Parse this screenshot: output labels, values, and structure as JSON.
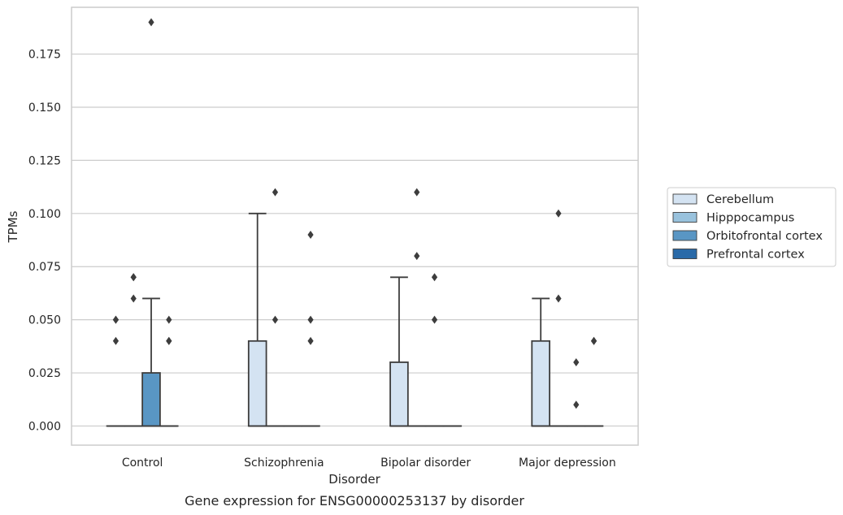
{
  "caption": "Gene expression for ENSG00000253137 by disorder",
  "chart_data": {
    "type": "box",
    "title": "",
    "xlabel": "Disorder",
    "ylabel": "TPMs",
    "categories": [
      "Control",
      "Schizophrenia",
      "Bipolar disorder",
      "Major depression"
    ],
    "ylim": [
      -0.009,
      0.197
    ],
    "yticks": [
      0.0,
      0.025,
      0.05,
      0.075,
      0.1,
      0.125,
      0.15,
      0.175
    ],
    "ytick_labels": [
      "0.000",
      "0.025",
      "0.050",
      "0.075",
      "0.100",
      "0.125",
      "0.150",
      "0.175"
    ],
    "grid": true,
    "legend_position": "right",
    "series": [
      {
        "name": "Cerebellum",
        "color": "#d4e3f2",
        "boxes": [
          {
            "category": "Control",
            "q1": 0,
            "median": 0,
            "q3": 0,
            "whisker_low": 0,
            "whisker_high": 0,
            "outliers": [
              0.04,
              0.05,
              0.05
            ]
          },
          {
            "category": "Schizophrenia",
            "q1": 0,
            "median": 0,
            "q3": 0.04,
            "whisker_low": 0,
            "whisker_high": 0.1,
            "outliers": []
          },
          {
            "category": "Bipolar disorder",
            "q1": 0,
            "median": 0,
            "q3": 0.03,
            "whisker_low": 0,
            "whisker_high": 0.07,
            "outliers": []
          },
          {
            "category": "Major depression",
            "q1": 0,
            "median": 0,
            "q3": 0.04,
            "whisker_low": 0,
            "whisker_high": 0.06,
            "outliers": []
          }
        ]
      },
      {
        "name": "Hipppocampus",
        "color": "#99c2dd",
        "boxes": [
          {
            "category": "Control",
            "q1": 0,
            "median": 0,
            "q3": 0,
            "whisker_low": 0,
            "whisker_high": 0,
            "outliers": [
              0.06,
              0.07,
              0.07
            ]
          },
          {
            "category": "Schizophrenia",
            "q1": 0,
            "median": 0,
            "q3": 0,
            "whisker_low": 0,
            "whisker_high": 0,
            "outliers": [
              0.05,
              0.11
            ]
          },
          {
            "category": "Bipolar disorder",
            "q1": 0,
            "median": 0,
            "q3": 0,
            "whisker_low": 0,
            "whisker_high": 0,
            "outliers": [
              0.08,
              0.11
            ]
          },
          {
            "category": "Major depression",
            "q1": 0,
            "median": 0,
            "q3": 0,
            "whisker_low": 0,
            "whisker_high": 0,
            "outliers": [
              0.06,
              0.1
            ]
          }
        ]
      },
      {
        "name": "Orbitofrontal cortex",
        "color": "#5996c4",
        "boxes": [
          {
            "category": "Control",
            "q1": 0,
            "median": 0,
            "q3": 0.025,
            "whisker_low": 0,
            "whisker_high": 0.06,
            "outliers": [
              0.19
            ]
          },
          {
            "category": "Schizophrenia",
            "q1": 0,
            "median": 0,
            "q3": 0,
            "whisker_low": 0,
            "whisker_high": 0,
            "outliers": []
          },
          {
            "category": "Bipolar disorder",
            "q1": 0,
            "median": 0,
            "q3": 0,
            "whisker_low": 0,
            "whisker_high": 0,
            "outliers": [
              0.05,
              0.07
            ]
          },
          {
            "category": "Major depression",
            "q1": 0,
            "median": 0,
            "q3": 0,
            "whisker_low": 0,
            "whisker_high": 0,
            "outliers": [
              0.01,
              0.03
            ]
          }
        ]
      },
      {
        "name": "Prefrontal cortex",
        "color": "#2a6aa8",
        "boxes": [
          {
            "category": "Control",
            "q1": 0,
            "median": 0,
            "q3": 0,
            "whisker_low": 0,
            "whisker_high": 0,
            "outliers": [
              0.04,
              0.04,
              0.05
            ]
          },
          {
            "category": "Schizophrenia",
            "q1": 0,
            "median": 0,
            "q3": 0,
            "whisker_low": 0,
            "whisker_high": 0,
            "outliers": [
              0.04,
              0.05,
              0.09
            ]
          },
          {
            "category": "Bipolar disorder",
            "q1": 0,
            "median": 0,
            "q3": 0,
            "whisker_low": 0,
            "whisker_high": 0,
            "outliers": []
          },
          {
            "category": "Major depression",
            "q1": 0,
            "median": 0,
            "q3": 0,
            "whisker_low": 0,
            "whisker_high": 0,
            "outliers": [
              0.04,
              0.04
            ]
          }
        ]
      }
    ],
    "colors": {
      "grid": "#cccccc",
      "frame": "#cccccc",
      "box_edge": "#3d3d3d",
      "outlier": "#3d3d3d"
    }
  }
}
